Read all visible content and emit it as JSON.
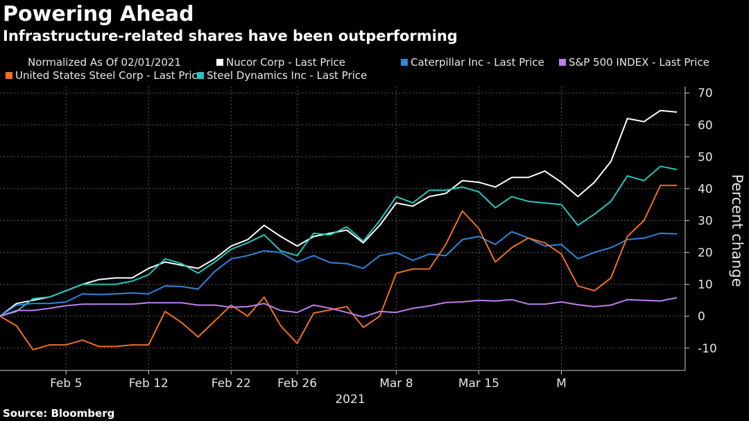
{
  "chart_data": {
    "type": "line",
    "title": "Powering Ahead",
    "subtitle": "Infrastructure-related shares have been outperforming",
    "normalized_note": "Normalized As Of 02/01/2021",
    "source": "Source: Bloomberg",
    "ylabel": "Percent change",
    "ylim": [
      -17,
      72
    ],
    "y_ticks": [
      70,
      60,
      50,
      40,
      30,
      20,
      10,
      0,
      -10
    ],
    "y_tick_labels": [
      "70",
      "60",
      "50",
      "40",
      "30",
      "20",
      "10",
      "0",
      "-10"
    ],
    "x_index_range": [
      0,
      41.5
    ],
    "x_ticks": [
      {
        "label": "Feb 5",
        "index": 4
      },
      {
        "label": "Feb 12",
        "index": 9
      },
      {
        "label": "Feb 22",
        "index": 14
      },
      {
        "label": "Feb 26",
        "index": 18
      },
      {
        "label": "Mar 8",
        "index": 24
      },
      {
        "label": "Mar 15",
        "index": 29
      },
      {
        "label": "M",
        "index": 34
      }
    ],
    "x_year_label": "2021",
    "series": [
      {
        "name": "Nucor Corp - Last Price",
        "color": "#ffffff",
        "values": [
          0,
          4,
          5,
          6,
          8,
          10,
          11.5,
          12,
          12,
          15,
          17,
          16,
          15,
          18,
          22,
          24,
          28.5,
          25,
          22,
          25,
          26,
          27,
          23,
          28.5,
          35.5,
          34.5,
          37.5,
          38.5,
          42.5,
          42,
          40.5,
          43.5,
          43.5,
          45.5,
          42,
          37.5,
          42,
          48.5,
          62,
          61,
          64.5,
          64
        ]
      },
      {
        "name": "Steel Dynamics Inc - Last Price",
        "color": "#20c8c0",
        "values": [
          0,
          1.5,
          5.5,
          6,
          8,
          10,
          10,
          10,
          11,
          13,
          18,
          16.5,
          13.5,
          17,
          21,
          23,
          25.5,
          20.5,
          19,
          26,
          25.5,
          28,
          23.5,
          30,
          37.5,
          35.5,
          39.5,
          39.5,
          40.5,
          39,
          34,
          37.5,
          36,
          35.5,
          35,
          28.5,
          32,
          36,
          44,
          42.5,
          47,
          46
        ]
      },
      {
        "name": "Caterpillar Inc - Last Price",
        "color": "#2e86e0",
        "values": [
          0,
          3.5,
          4,
          4,
          4.5,
          7,
          6.8,
          7,
          7.3,
          7,
          9.5,
          9.3,
          8.5,
          14,
          18,
          19,
          20.5,
          20,
          17,
          19,
          16.8,
          16.5,
          15,
          19,
          20,
          17.5,
          19.5,
          19,
          24,
          25,
          22.5,
          26.5,
          24.5,
          22,
          22.5,
          18,
          20,
          21.5,
          24,
          24.5,
          26,
          25.8
        ]
      },
      {
        "name": "United States Steel Corp - Last Price",
        "color": "#f07020",
        "values": [
          0,
          -3,
          -10.5,
          -9,
          -9,
          -7.5,
          -9.5,
          -9.5,
          -9,
          -9,
          1.5,
          -2,
          -6.5,
          -1.5,
          3.5,
          0,
          6,
          -3,
          -8.5,
          1,
          2,
          3,
          -3.5,
          0,
          13.5,
          14.8,
          14.8,
          22.5,
          33,
          27.5,
          17,
          21.5,
          24.5,
          23,
          19.5,
          9.5,
          8,
          12,
          25,
          30,
          41,
          41
        ]
      },
      {
        "name": "S&P 500 INDEX - Last Price",
        "color": "#c07ff0",
        "values": [
          0,
          1.8,
          1.8,
          2.5,
          3.3,
          3.8,
          3.8,
          3.8,
          3.8,
          4.2,
          4.2,
          4.2,
          3.5,
          3.5,
          2.8,
          3,
          4,
          1.8,
          1.2,
          3.5,
          2.5,
          1.2,
          -0.2,
          1.5,
          1.2,
          2.5,
          3.2,
          4.3,
          4.5,
          5,
          4.8,
          5.2,
          3.8,
          3.8,
          4.5,
          3.6,
          3,
          3.5,
          5.2,
          5,
          4.8,
          5.8
        ]
      }
    ],
    "legend": [
      {
        "label": "Nucor Corp - Last Price",
        "color": "#ffffff"
      },
      {
        "label": "Caterpillar Inc - Last Price",
        "color": "#2e86e0"
      },
      {
        "label": "S&P 500 INDEX - Last Price",
        "color": "#c07ff0"
      },
      {
        "label": "United States Steel Corp - Last Price",
        "color": "#f07020"
      },
      {
        "label": "Steel Dynamics Inc - Last Price",
        "color": "#20c8c0"
      }
    ],
    "grid": true,
    "legend_placement": "top"
  }
}
